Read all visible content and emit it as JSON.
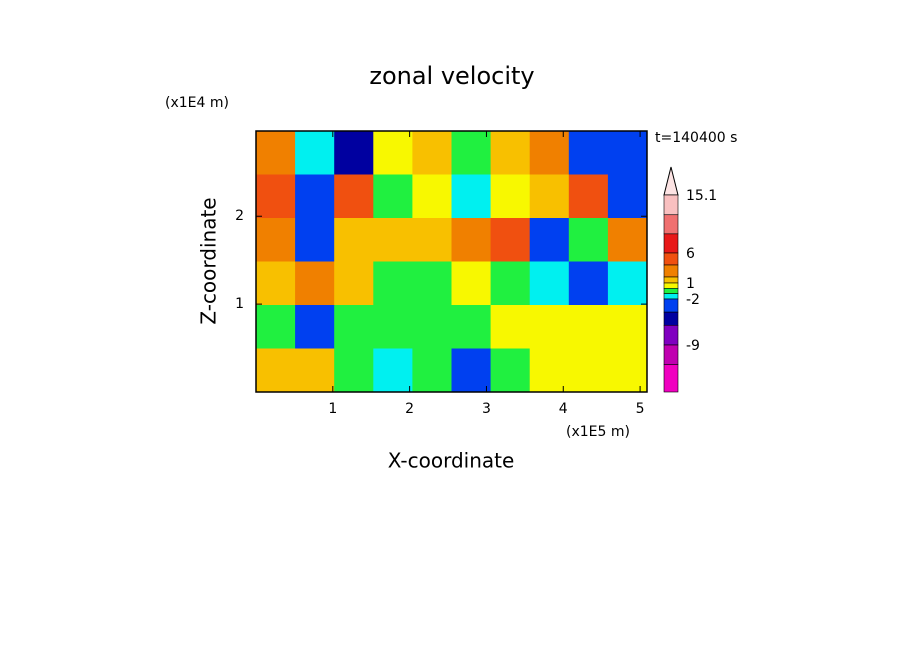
{
  "chart_data": {
    "type": "contour",
    "title": "zonal velocity",
    "xlabel": "X-coordinate",
    "ylabel": "Z-coordinate",
    "x_unit": "(x1E5 m)",
    "y_unit": "(x1E4 m)",
    "annotation": "t=140400 s",
    "xlim": [
      0,
      5.09
    ],
    "ylim": [
      0,
      2.97
    ],
    "xticks": [
      1,
      2,
      3,
      4,
      5
    ],
    "yticks": [
      1,
      2
    ],
    "z": [
      [
        3,
        -1,
        -4,
        1,
        2,
        0,
        2,
        3,
        -2,
        -3
      ],
      [
        5,
        -2,
        6,
        0,
        1,
        -1,
        1,
        2,
        5,
        -3
      ],
      [
        3,
        -2,
        2,
        2,
        2,
        3,
        6,
        -2,
        0,
        4
      ],
      [
        2,
        3,
        2,
        0,
        0,
        1,
        0,
        -1,
        -2,
        -1
      ],
      [
        0,
        -3,
        0,
        0,
        0,
        0,
        1,
        1,
        1,
        1
      ],
      [
        2,
        2,
        0,
        -1,
        0,
        -3,
        0,
        1,
        1,
        1
      ]
    ],
    "levels": [
      15.1,
      12,
      9,
      6,
      4,
      2,
      1,
      0,
      -1,
      -2,
      -4,
      -6,
      -9,
      -12,
      -15
    ],
    "colors": [
      "#f9c0c0",
      "#f07070",
      "#e81818",
      "#f05010",
      "#f08000",
      "#f8c000",
      "#f8f800",
      "#20f040",
      "#00f0f0",
      "#0040f0",
      "#0000a0",
      "#8000c0",
      "#c000b0",
      "#f000c0"
    ],
    "over_color": "#fde4e4",
    "colorbar_ticks": [
      15.1,
      6,
      1,
      -2,
      -9
    ]
  }
}
